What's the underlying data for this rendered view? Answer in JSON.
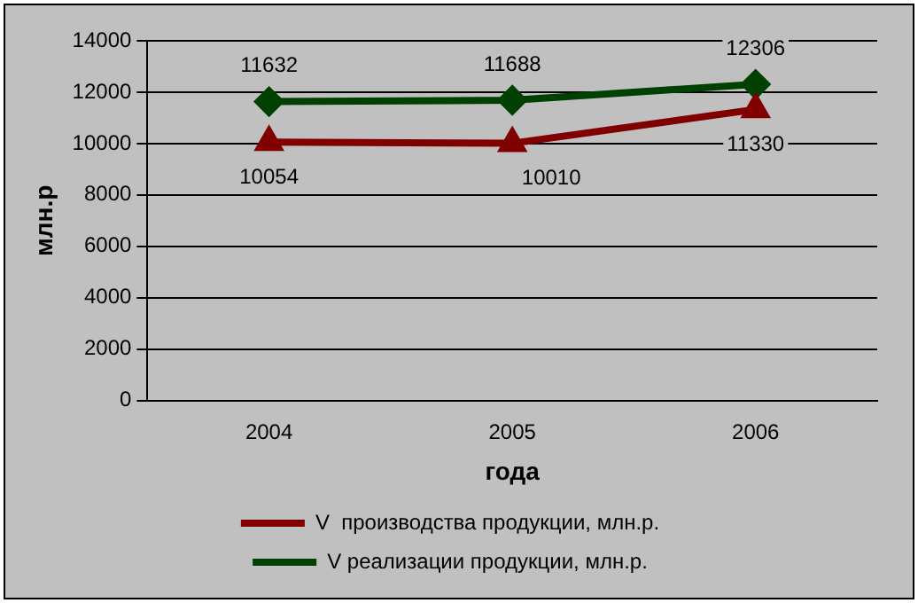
{
  "chart_data": {
    "type": "line",
    "xlabel": "года",
    "ylabel": "млн.р",
    "categories": [
      "2004",
      "2005",
      "2006"
    ],
    "series": [
      {
        "name": "V  производства продукции, млн.р.",
        "color": "#800000",
        "marker": "triangle",
        "values": [
          10054,
          10010,
          11330
        ]
      },
      {
        "name": "V реализации продукции, млн.р.",
        "color": "#004000",
        "marker": "diamond",
        "values": [
          11632,
          11688,
          12306
        ]
      }
    ],
    "ylim": [
      0,
      14000
    ],
    "yticks": [
      0,
      2000,
      4000,
      6000,
      8000,
      10000,
      12000,
      14000
    ],
    "grid": "y",
    "legend": "bottom",
    "data_labels": true
  }
}
